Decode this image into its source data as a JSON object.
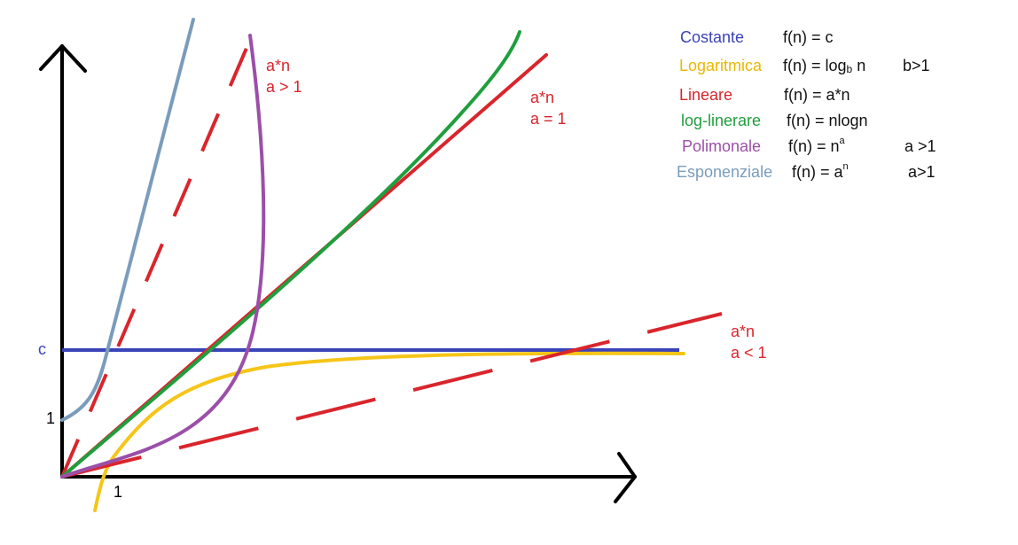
{
  "colors": {
    "constant": "#3b43b8",
    "logarithmic": "#f5c518",
    "linear": "#d9252c",
    "loglinear": "#1f9e3d",
    "polynomial": "#9b4fa8",
    "exponential": "#7a9cbc",
    "axis": "#000000"
  },
  "axis_labels": {
    "c": "c",
    "y_one": "1",
    "x_one": "1"
  },
  "annotations": {
    "steep": {
      "line1": "a*n",
      "line2": "a > 1"
    },
    "equal": {
      "line1": "a*n",
      "line2": "a = 1"
    },
    "shallow": {
      "line1": "a*n",
      "line2": "a < 1"
    }
  },
  "legend": {
    "constant": {
      "name": "Costante",
      "formula": "f(n) = c",
      "cond": ""
    },
    "logarithmic": {
      "name": "Logaritmica",
      "formula_pre": "f(n) = log",
      "formula_sub": "b",
      "formula_post": " n",
      "cond": "b>1"
    },
    "linear": {
      "name": "Lineare",
      "formula": "f(n) = a*n",
      "cond": ""
    },
    "loglinear": {
      "name": "log-linerare",
      "formula": "f(n) = nlogn",
      "cond": ""
    },
    "polynomial": {
      "name": "Polimonale",
      "formula_pre": "f(n) = n",
      "formula_sup": "a",
      "cond": "a >1"
    },
    "exponential": {
      "name": "Esponenziale",
      "formula_pre": "f(n) = a",
      "formula_sup": "n",
      "cond": "a>1"
    }
  }
}
